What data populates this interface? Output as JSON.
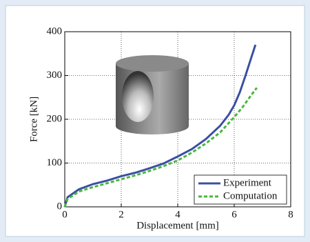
{
  "chart_data": {
    "type": "line",
    "xlabel": "Displacement [mm]",
    "ylabel": "Force [kN]",
    "xlim": [
      0,
      8
    ],
    "xticks": [
      0,
      2,
      4,
      6,
      8
    ],
    "ylim": [
      0,
      400
    ],
    "yticks": [
      0,
      100,
      200,
      300,
      400
    ],
    "grid": true,
    "legend": "lower right",
    "series": [
      {
        "name": "Experiment",
        "color": "#3a4fa3",
        "style": "solid",
        "x": [
          0,
          0.1,
          0.5,
          1,
          1.5,
          2,
          2.5,
          3,
          3.5,
          4,
          4.5,
          5,
          5.5,
          5.8,
          6,
          6.2,
          6.4,
          6.6,
          6.75
        ],
        "values": [
          0,
          22,
          40,
          52,
          60,
          70,
          78,
          88,
          99,
          115,
          132,
          155,
          185,
          210,
          232,
          262,
          300,
          340,
          370
        ]
      },
      {
        "name": "Computation",
        "color": "#46b83c",
        "style": "dashed",
        "x": [
          0,
          0.1,
          0.5,
          1,
          1.5,
          2,
          2.5,
          3,
          3.5,
          4,
          4.5,
          5,
          5.5,
          6,
          6.3,
          6.6,
          6.8
        ],
        "values": [
          0,
          18,
          35,
          45,
          54,
          63,
          72,
          82,
          93,
          106,
          124,
          145,
          170,
          205,
          228,
          255,
          272
        ]
      }
    ]
  }
}
